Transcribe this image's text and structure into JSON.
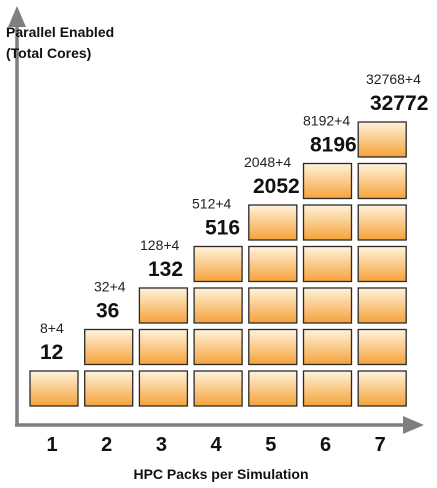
{
  "chart_data": {
    "type": "bar",
    "ylabel_lines": [
      "Parallel Enabled",
      "(Total Cores)"
    ],
    "xlabel": "HPC Packs per Simulation",
    "categories": [
      "1",
      "2",
      "3",
      "4",
      "5",
      "6",
      "7"
    ],
    "values": [
      12,
      36,
      132,
      516,
      2052,
      8196,
      32772
    ],
    "formulas": [
      "8+4",
      "32+4",
      "128+4",
      "512+4",
      "2048+4",
      "8192+4",
      "32768+4"
    ],
    "totals": [
      "12",
      "36",
      "132",
      "516",
      "2052",
      "8196",
      "32772"
    ],
    "stack_counts": [
      1,
      2,
      3,
      4,
      5,
      6,
      7
    ],
    "colors": {
      "box_top": "#fff3dc",
      "box_bottom": "#f5a23a",
      "axis": "#7f7f7f"
    }
  }
}
